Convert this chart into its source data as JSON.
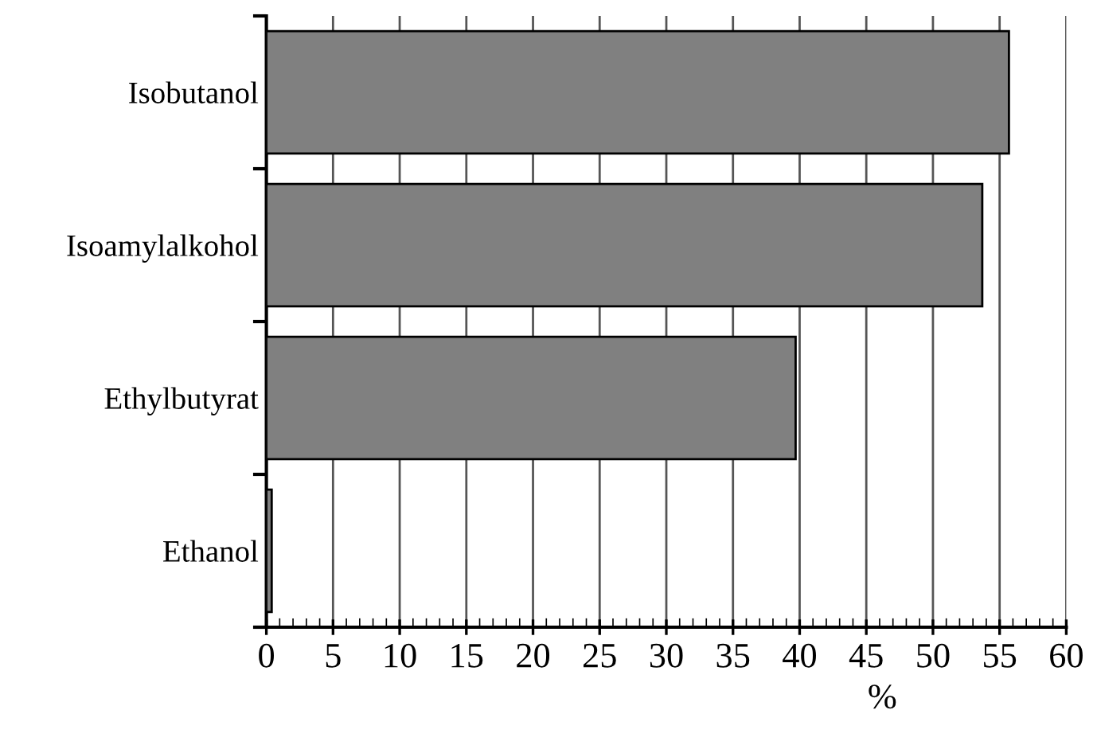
{
  "chart_data": {
    "type": "bar",
    "orientation": "horizontal",
    "xlabel": "%",
    "categories": [
      "Isobutanol",
      "Isoamylalkohol",
      "Ethylbutyrat",
      "Ethanol"
    ],
    "values": [
      55.7,
      53.7,
      39.7,
      0.4
    ],
    "color": "#808080",
    "xlim": [
      0,
      60
    ],
    "xticks": [
      0,
      5,
      10,
      15,
      20,
      25,
      30,
      35,
      40,
      45,
      50,
      55,
      60
    ],
    "grid": "x"
  }
}
